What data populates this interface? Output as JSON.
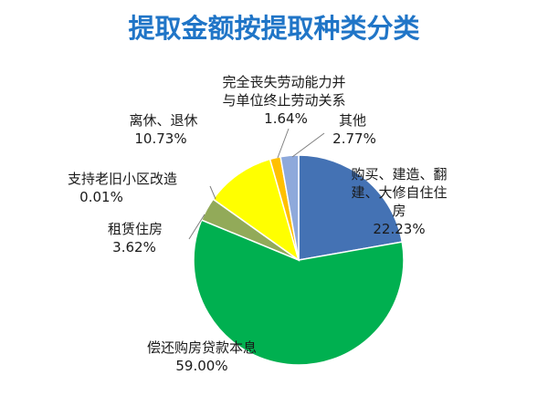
{
  "chart_data": {
    "type": "pie",
    "title": "提取金额按提取种类分类",
    "title_color": "#2075C7",
    "categories": [
      "购买、建造、翻建、大修自住住房",
      "偿还购房贷款本息",
      "租赁住房",
      "支持老旧小区改造",
      "离休、退休",
      "完全丧失劳动能力并与单位终止劳动关系",
      "其他"
    ],
    "values": [
      22.23,
      59.0,
      3.62,
      0.01,
      10.73,
      1.64,
      2.77
    ],
    "value_unit": "%",
    "colors": [
      "#4472B4",
      "#00B050",
      "#92AA59",
      "#A5A5A5",
      "#FFFF00",
      "#FFC000",
      "#8EA9DB"
    ]
  }
}
